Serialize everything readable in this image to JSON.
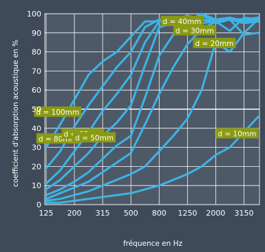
{
  "chart_data": {
    "type": "line",
    "title": "",
    "xlabel": "fréquence en Hz",
    "ylabel": "coefficient d'absorption acoustique en %",
    "x": [
      "125",
      "160",
      "200",
      "250",
      "315",
      "400",
      "500",
      "630",
      "800",
      "1000",
      "1250",
      "1600",
      "2000",
      "2500",
      "3150",
      "4000"
    ],
    "x_tick_labels": [
      "125",
      "200",
      "315",
      "500",
      "800",
      "1250",
      "2000",
      "3150"
    ],
    "y_ticks": [
      0,
      10,
      20,
      30,
      40,
      50,
      60,
      70,
      80,
      90,
      100
    ],
    "ylim": [
      0,
      100
    ],
    "grid": true,
    "colors": {
      "background": "#3f4a59",
      "plot_area": "#4e5968",
      "grid": "#ffffff",
      "series": "#3db4e6",
      "label_box": "#8a9a12"
    },
    "series": [
      {
        "name": "d = 100mm",
        "values": [
          30,
          42,
          55,
          68,
          75,
          80,
          88,
          96,
          96,
          97,
          99,
          97,
          95,
          97,
          97,
          96
        ]
      },
      {
        "name": "d = 80mm",
        "values": [
          19,
          28,
          41,
          52,
          62,
          72,
          80,
          93,
          97,
          96,
          95,
          97,
          96,
          97,
          97,
          98
        ]
      },
      {
        "name": "d = 60mm",
        "values": [
          11,
          18,
          28,
          38,
          49,
          58,
          68,
          85,
          96,
          96,
          93,
          95,
          96,
          97,
          89,
          90
        ]
      },
      {
        "name": "d = 50mm",
        "values": [
          8,
          13,
          20,
          27,
          36,
          43,
          52,
          73,
          93,
          95,
          94,
          99,
          96,
          97,
          95,
          96
        ]
      },
      {
        "name": "d = 40mm",
        "values": [
          5,
          8,
          12,
          17,
          24,
          31,
          36,
          56,
          78,
          89,
          96,
          100,
          97,
          98,
          96,
          96
        ]
      },
      {
        "name": "d = 30mm",
        "values": [
          3,
          6,
          9,
          12,
          17,
          22,
          27,
          42,
          58,
          72,
          84,
          92,
          96,
          91,
          98,
          97
        ]
      },
      {
        "name": "d = 20mm",
        "values": [
          2,
          3,
          5,
          7,
          10,
          13,
          16,
          20,
          28,
          36,
          45,
          60,
          85,
          80,
          90,
          97
        ]
      },
      {
        "name": "d = 10mm",
        "values": [
          1,
          1,
          2,
          3,
          4,
          5,
          6,
          8,
          10,
          13,
          16,
          20,
          26,
          30,
          38,
          46
        ]
      }
    ]
  }
}
